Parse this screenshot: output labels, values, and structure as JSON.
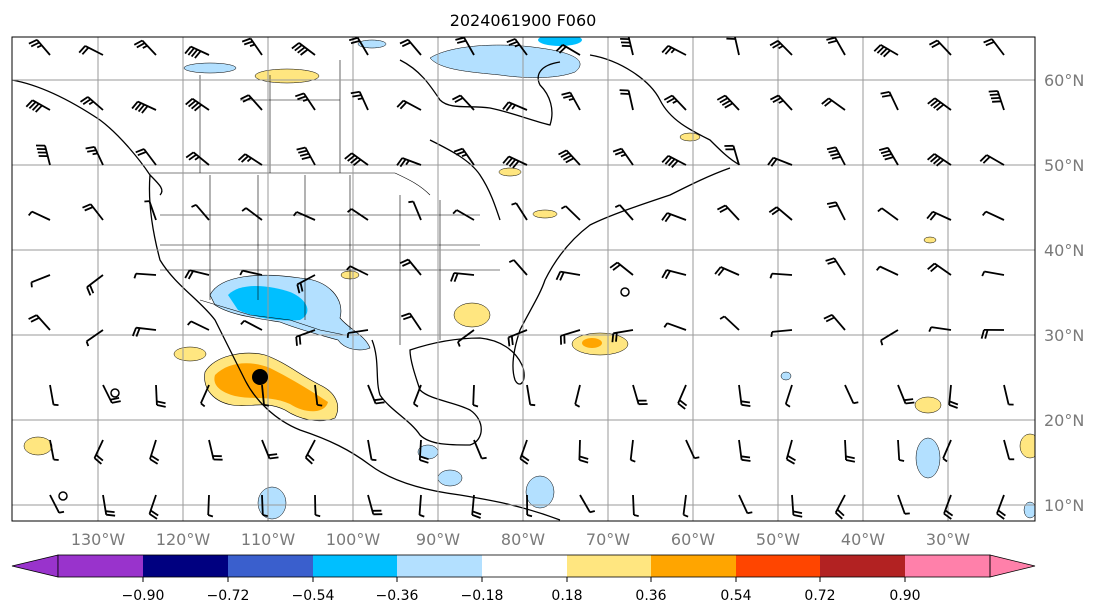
{
  "title": "2024061900 F060",
  "map": {
    "lon_range": [
      -136,
      -16
    ],
    "lat_range": [
      8,
      65
    ],
    "lon_ticks": [
      "130°W",
      "120°W",
      "110°W",
      "100°W",
      "90°W",
      "80°W",
      "70°W",
      "60°W",
      "50°W",
      "40°W",
      "30°W"
    ],
    "lat_ticks": [
      "10°N",
      "20°N",
      "30°N",
      "40°N",
      "50°N",
      "60°N"
    ],
    "gridlines": true
  },
  "colorbar": {
    "labels": [
      "−0.90",
      "−0.72",
      "−0.54",
      "−0.36",
      "−0.18",
      "0.18",
      "0.36",
      "0.54",
      "0.72",
      "0.90"
    ],
    "colors": {
      "lt_-0.90": "#9933cc",
      "-0.90_-0.72": "#000080",
      "-0.72_-0.54": "#3a5fcd",
      "-0.54_-0.36": "#00bfff",
      "-0.36_-0.18": "#b3e0ff",
      "-0.18_0.18": "#ffffff",
      "0.18_0.36": "#ffe680",
      "0.36_0.54": "#ffa500",
      "0.54_0.72": "#ff4500",
      "0.72_0.90": "#b22222",
      "gt_0.90": "#ff80aa"
    }
  },
  "fields": {
    "wind_barbs": true,
    "shaded_anomaly": true,
    "coastlines": true,
    "state_borders": true
  }
}
